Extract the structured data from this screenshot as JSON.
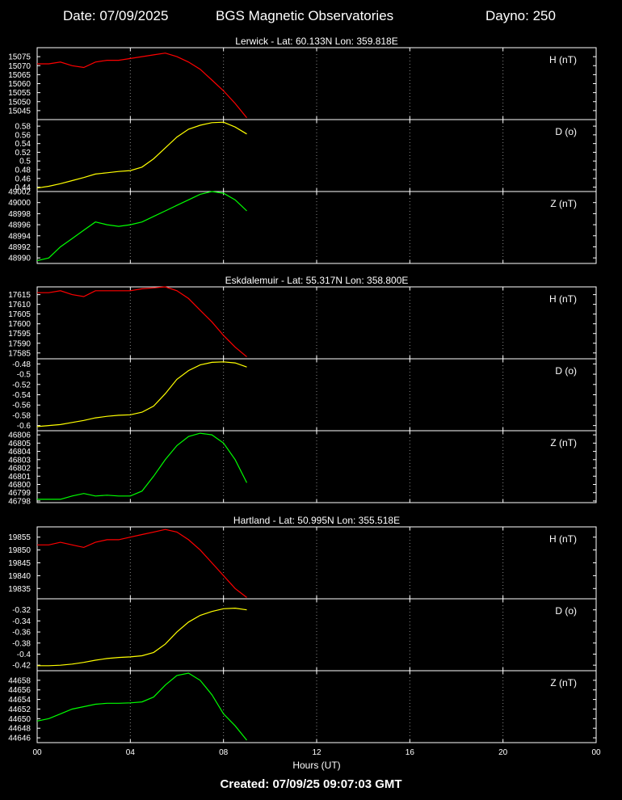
{
  "header": {
    "date": "Date: 07/09/2025",
    "title": "BGS Magnetic Observatories",
    "dayno": "Dayno: 250"
  },
  "footer": {
    "created": "Created: 07/09/25 09:07:03 GMT"
  },
  "colors": {
    "H": "#ff0000",
    "D": "#ffff00",
    "Z": "#00ff00",
    "axes": "#ffffff",
    "grid": "#888888"
  },
  "chart_data": {
    "type": "line",
    "xlabel": "Hours (UT)",
    "x_ticks": [
      "00",
      "04",
      "08",
      "12",
      "16",
      "20",
      "00"
    ],
    "x_range": [
      0,
      24
    ],
    "observatories": [
      {
        "name": "Lerwick - Lat: 60.133N Lon: 359.818E",
        "panels": [
          {
            "label": "H (nT)",
            "component": "H",
            "ylim": [
              15040,
              15080
            ],
            "ticks": [
              "15045",
              "15050",
              "15055",
              "15060",
              "15065",
              "15070",
              "15075"
            ],
            "tick_values": [
              15045,
              15050,
              15055,
              15060,
              15065,
              15070,
              15075
            ],
            "points": [
              [
                0,
                15071
              ],
              [
                0.5,
                15071
              ],
              [
                1,
                15072
              ],
              [
                1.5,
                15070
              ],
              [
                2,
                15069
              ],
              [
                2.5,
                15072
              ],
              [
                3,
                15073
              ],
              [
                3.5,
                15073
              ],
              [
                4,
                15074
              ],
              [
                4.5,
                15075
              ],
              [
                5,
                15076
              ],
              [
                5.5,
                15077
              ],
              [
                6,
                15075
              ],
              [
                6.5,
                15072
              ],
              [
                7,
                15068
              ],
              [
                7.5,
                15062
              ],
              [
                8,
                15056
              ],
              [
                8.5,
                15049
              ],
              [
                9,
                15041
              ]
            ]
          },
          {
            "label": "D (o)",
            "component": "D",
            "ylim": [
              0.43,
              0.595
            ],
            "ticks": [
              "0.44",
              "0.46",
              "0.48",
              "0.5",
              "0.52",
              "0.54",
              "0.56",
              "0.58"
            ],
            "tick_values": [
              0.44,
              0.46,
              0.48,
              0.5,
              0.52,
              0.54,
              0.56,
              0.58
            ],
            "points": [
              [
                0,
                0.438
              ],
              [
                0.5,
                0.442
              ],
              [
                1,
                0.448
              ],
              [
                1.5,
                0.455
              ],
              [
                2,
                0.462
              ],
              [
                2.5,
                0.47
              ],
              [
                3,
                0.473
              ],
              [
                3.5,
                0.476
              ],
              [
                4,
                0.478
              ],
              [
                4.5,
                0.486
              ],
              [
                5,
                0.505
              ],
              [
                5.5,
                0.53
              ],
              [
                6,
                0.555
              ],
              [
                6.5,
                0.573
              ],
              [
                7,
                0.582
              ],
              [
                7.5,
                0.588
              ],
              [
                8,
                0.589
              ],
              [
                8.5,
                0.578
              ],
              [
                9,
                0.562
              ]
            ]
          },
          {
            "label": "Z (nT)",
            "component": "Z",
            "ylim": [
              48989,
              49002
            ],
            "ticks": [
              "48990",
              "48992",
              "48994",
              "48996",
              "48998",
              "49000",
              "49002"
            ],
            "tick_values": [
              48990,
              48992,
              48994,
              48996,
              48998,
              49000,
              49002
            ],
            "points": [
              [
                0,
                48989.5
              ],
              [
                0.5,
                48990
              ],
              [
                1,
                48992
              ],
              [
                1.5,
                48993.5
              ],
              [
                2,
                48995
              ],
              [
                2.5,
                48996.5
              ],
              [
                3,
                48996
              ],
              [
                3.5,
                48995.7
              ],
              [
                4,
                48996
              ],
              [
                4.5,
                48996.5
              ],
              [
                5,
                48997.5
              ],
              [
                5.5,
                48998.5
              ],
              [
                6,
                48999.5
              ],
              [
                6.5,
                49000.5
              ],
              [
                7,
                49001.5
              ],
              [
                7.5,
                49002
              ],
              [
                8,
                49001.7
              ],
              [
                8.5,
                49000.5
              ],
              [
                9,
                48998.5
              ]
            ]
          }
        ]
      },
      {
        "name": "Eskdalemuir - Lat: 55.317N Lon: 358.800E",
        "panels": [
          {
            "label": "H (nT)",
            "component": "H",
            "ylim": [
              17582,
              17619
            ],
            "ticks": [
              "17585",
              "17590",
              "17595",
              "17600",
              "17605",
              "17610",
              "17615"
            ],
            "tick_values": [
              17585,
              17590,
              17595,
              17600,
              17605,
              17610,
              17615
            ],
            "points": [
              [
                0,
                17616
              ],
              [
                0.5,
                17616
              ],
              [
                1,
                17617
              ],
              [
                1.5,
                17615
              ],
              [
                2,
                17614
              ],
              [
                2.5,
                17617
              ],
              [
                3,
                17617
              ],
              [
                3.5,
                17617
              ],
              [
                4,
                17617
              ],
              [
                4.5,
                17618
              ],
              [
                5,
                17618.5
              ],
              [
                5.5,
                17619
              ],
              [
                6,
                17617
              ],
              [
                6.5,
                17613
              ],
              [
                7,
                17607
              ],
              [
                7.5,
                17601
              ],
              [
                8,
                17594
              ],
              [
                8.5,
                17588
              ],
              [
                9,
                17583
              ]
            ]
          },
          {
            "label": "D (o)",
            "component": "D",
            "ylim": [
              -0.61,
              -0.47
            ],
            "ticks": [
              "-0.6",
              "-0.58",
              "-0.56",
              "-0.54",
              "-0.52",
              "-0.5",
              "-0.48"
            ],
            "tick_values": [
              -0.6,
              -0.58,
              -0.56,
              -0.54,
              -0.52,
              -0.5,
              -0.48
            ],
            "points": [
              [
                0,
                -0.602
              ],
              [
                0.5,
                -0.6
              ],
              [
                1,
                -0.598
              ],
              [
                1.5,
                -0.594
              ],
              [
                2,
                -0.59
              ],
              [
                2.5,
                -0.585
              ],
              [
                3,
                -0.582
              ],
              [
                3.5,
                -0.58
              ],
              [
                4,
                -0.579
              ],
              [
                4.5,
                -0.574
              ],
              [
                5,
                -0.562
              ],
              [
                5.5,
                -0.538
              ],
              [
                6,
                -0.51
              ],
              [
                6.5,
                -0.493
              ],
              [
                7,
                -0.482
              ],
              [
                7.5,
                -0.477
              ],
              [
                8,
                -0.476
              ],
              [
                8.5,
                -0.478
              ],
              [
                9,
                -0.486
              ]
            ]
          },
          {
            "label": "Z (nT)",
            "component": "Z",
            "ylim": [
              46797.8,
              46806.5
            ],
            "ticks": [
              "46798",
              "46799",
              "46800",
              "46801",
              "46802",
              "46803",
              "46804",
              "46805",
              "46806"
            ],
            "tick_values": [
              46798,
              46799,
              46800,
              46801,
              46802,
              46803,
              46804,
              46805,
              46806
            ],
            "points": [
              [
                0,
                46798.2
              ],
              [
                1,
                46798.2
              ],
              [
                1.5,
                46798.6
              ],
              [
                2,
                46798.9
              ],
              [
                2.5,
                46798.6
              ],
              [
                3,
                46798.7
              ],
              [
                3.5,
                46798.6
              ],
              [
                4,
                46798.6
              ],
              [
                4.5,
                46799.2
              ],
              [
                5,
                46801
              ],
              [
                5.5,
                46803
              ],
              [
                6,
                46804.7
              ],
              [
                6.5,
                46805.8
              ],
              [
                7,
                46806.2
              ],
              [
                7.5,
                46806
              ],
              [
                8,
                46805
              ],
              [
                8.5,
                46803
              ],
              [
                9,
                46800.2
              ]
            ]
          }
        ]
      },
      {
        "name": "Hartland - Lat: 50.995N Lon: 355.518E",
        "panels": [
          {
            "label": "H (nT)",
            "component": "H",
            "ylim": [
              19831,
              19859
            ],
            "ticks": [
              "19835",
              "19840",
              "19845",
              "19850",
              "19855"
            ],
            "tick_values": [
              19835,
              19840,
              19845,
              19850,
              19855
            ],
            "points": [
              [
                0,
                19852
              ],
              [
                0.5,
                19852
              ],
              [
                1,
                19853
              ],
              [
                1.5,
                19852
              ],
              [
                2,
                19851
              ],
              [
                2.5,
                19853
              ],
              [
                3,
                19854
              ],
              [
                3.5,
                19854
              ],
              [
                4,
                19855
              ],
              [
                4.5,
                19856
              ],
              [
                5,
                19857
              ],
              [
                5.5,
                19858
              ],
              [
                6,
                19857
              ],
              [
                6.5,
                19854
              ],
              [
                7,
                19850
              ],
              [
                7.5,
                19845
              ],
              [
                8,
                19840
              ],
              [
                8.5,
                19835
              ],
              [
                9,
                19831.5
              ]
            ]
          },
          {
            "label": "D (o)",
            "component": "D",
            "ylim": [
              -0.43,
              -0.3
            ],
            "ticks": [
              "-0.42",
              "-0.4",
              "-0.38",
              "-0.36",
              "-0.34",
              "-0.32"
            ],
            "tick_values": [
              -0.42,
              -0.4,
              -0.38,
              -0.36,
              -0.34,
              -0.32
            ],
            "points": [
              [
                0,
                -0.421
              ],
              [
                0.5,
                -0.421
              ],
              [
                1,
                -0.42
              ],
              [
                1.5,
                -0.418
              ],
              [
                2,
                -0.415
              ],
              [
                2.5,
                -0.411
              ],
              [
                3,
                -0.408
              ],
              [
                3.5,
                -0.406
              ],
              [
                4,
                -0.405
              ],
              [
                4.5,
                -0.403
              ],
              [
                5,
                -0.397
              ],
              [
                5.5,
                -0.382
              ],
              [
                6,
                -0.36
              ],
              [
                6.5,
                -0.342
              ],
              [
                7,
                -0.33
              ],
              [
                7.5,
                -0.323
              ],
              [
                8,
                -0.318
              ],
              [
                8.5,
                -0.317
              ],
              [
                9,
                -0.32
              ]
            ]
          },
          {
            "label": "Z (nT)",
            "component": "Z",
            "ylim": [
              44645,
              44660
            ],
            "ticks": [
              "44646",
              "44648",
              "44650",
              "44652",
              "44654",
              "44656",
              "44658"
            ],
            "tick_values": [
              44646,
              44648,
              44650,
              44652,
              44654,
              44656,
              44658
            ],
            "points": [
              [
                0,
                44649.5
              ],
              [
                0.5,
                44650
              ],
              [
                1,
                44651
              ],
              [
                1.5,
                44652
              ],
              [
                2,
                44652.5
              ],
              [
                2.5,
                44653
              ],
              [
                3,
                44653.2
              ],
              [
                3.5,
                44653.2
              ],
              [
                4,
                44653.3
              ],
              [
                4.5,
                44653.5
              ],
              [
                5,
                44654.5
              ],
              [
                5.5,
                44657
              ],
              [
                6,
                44659
              ],
              [
                6.5,
                44659.5
              ],
              [
                7,
                44658
              ],
              [
                7.5,
                44655
              ],
              [
                8,
                44651
              ],
              [
                8.5,
                44648.5
              ],
              [
                9,
                44645.5
              ]
            ]
          }
        ]
      }
    ]
  }
}
